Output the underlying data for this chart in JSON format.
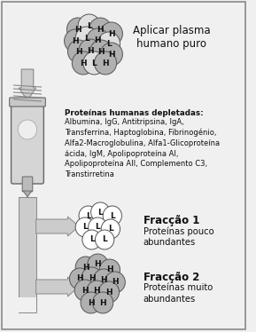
{
  "background_color": "#f0f0f0",
  "border_color": "#888888",
  "title_text": "Aplicar plasma\nhumano puro",
  "depleted_title": "Proteínas humanas depletadas:",
  "depleted_text": "Albumina, IgG, Antitripsina, IgA,\nTransferrina, Haptoglobina, Fibrinogénio,\nAlfa2-Macroglobulina, Alfa1-Glicoproteína\nácida, IgM, Apolipoproteína AI,\nApolipoproteína AII, Complemento C3,\nTranstirretina",
  "fraction1_title": "Fracção 1",
  "fraction1_text": "Proteínas pouco\nabundantes",
  "fraction2_title": "Fracção 2",
  "fraction2_text": "Proteínas muito\nabundantes",
  "circle_dark": "#b0b0b0",
  "circle_light": "#e0e0e0",
  "circle_white": "#ffffff",
  "text_color": "#111111",
  "arrow_color": "#cccccc",
  "arrow_edge": "#888888"
}
